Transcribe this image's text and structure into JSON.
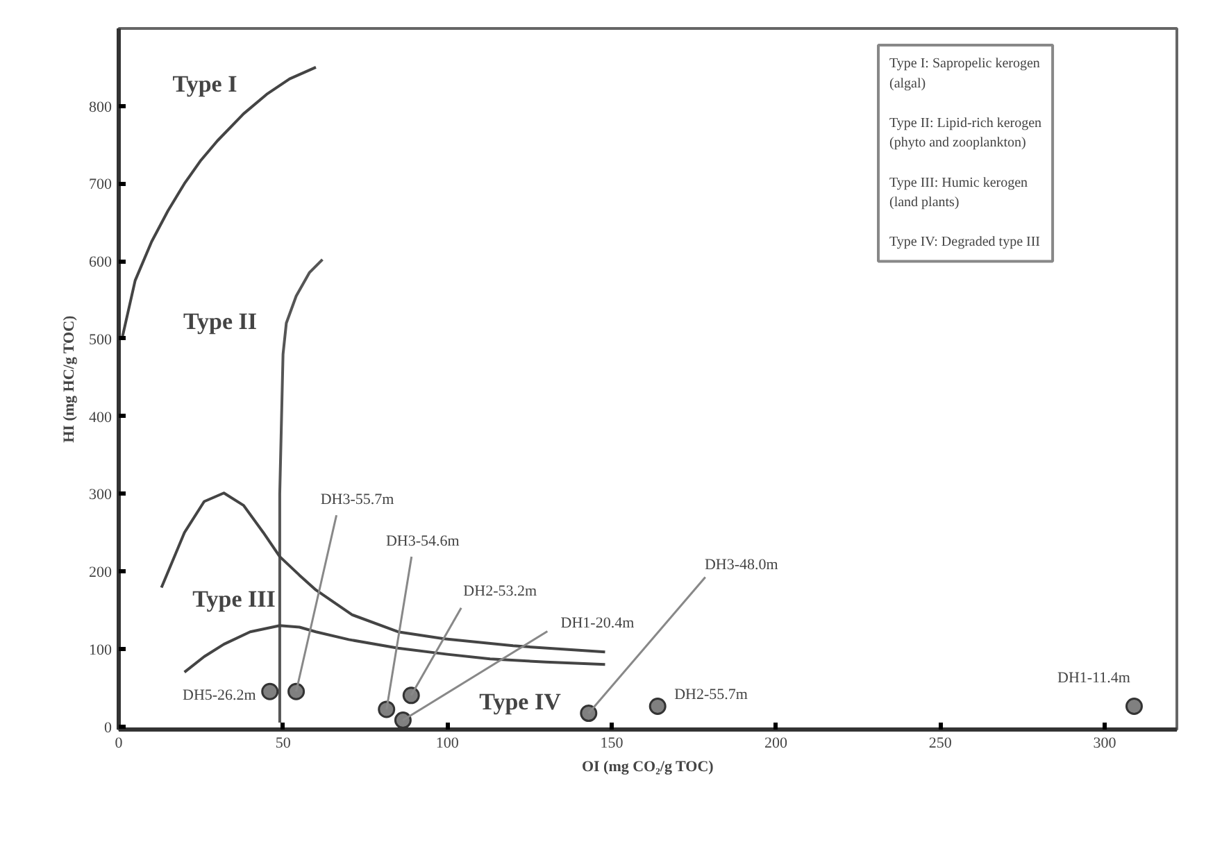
{
  "chart_data": {
    "type": "scatter",
    "xlabel": "OI (mg CO₂/g TOC)",
    "ylabel": "HI (mg HC/g TOC)",
    "xlim": [
      0,
      322
    ],
    "ylim": [
      -4,
      900
    ],
    "xticks": [
      0,
      50,
      100,
      150,
      200,
      250,
      300
    ],
    "yticks": [
      0,
      100,
      200,
      300,
      400,
      500,
      600,
      700,
      800
    ],
    "grid": false,
    "series": [
      {
        "marker": "circle",
        "color": "#808080",
        "x": [
          46,
          54,
          81.5,
          89,
          86.5,
          143,
          164,
          309
        ],
        "values": [
          45,
          45,
          22,
          40,
          8,
          17,
          26,
          26
        ]
      },
      {
        "type": "line",
        "color": "#444444",
        "x": [
          1,
          5,
          10,
          15,
          20,
          25,
          30,
          38,
          45,
          52,
          60
        ],
        "values": [
          500,
          575,
          625,
          665,
          700,
          730,
          755,
          790,
          815,
          835,
          850
        ]
      },
      {
        "type": "line",
        "color": "#555555",
        "x": [
          49,
          49,
          50,
          51,
          54,
          58,
          62
        ],
        "values": [
          5,
          300,
          480,
          520,
          555,
          585,
          602
        ]
      },
      {
        "type": "line",
        "color": "#444444",
        "x": [
          13,
          20,
          26,
          32,
          38,
          44,
          49,
          55,
          60,
          71,
          85,
          99,
          120,
          148
        ],
        "values": [
          179,
          250,
          290,
          301,
          285,
          250,
          219,
          195,
          176,
          144,
          122,
          113,
          104,
          96
        ]
      },
      {
        "type": "line",
        "color": "#444444",
        "x": [
          20,
          26,
          32,
          40,
          49,
          55,
          60,
          70,
          85,
          100,
          113,
          130,
          148
        ],
        "values": [
          70,
          90,
          106,
          122,
          130,
          128,
          122,
          112,
          101,
          93,
          87,
          83,
          80
        ]
      }
    ],
    "annotations": [
      {
        "text": "DH5-26.2m",
        "x": 46,
        "y": 45
      },
      {
        "text": "DH3-55.7m",
        "x": 54,
        "y": 45
      },
      {
        "text": "DH3-54.6m",
        "x": 81.5,
        "y": 22
      },
      {
        "text": "DH2-53.2m",
        "x": 89,
        "y": 40
      },
      {
        "text": "DH1-20.4m",
        "x": 86.5,
        "y": 8
      },
      {
        "text": "DH3-48.0m",
        "x": 143,
        "y": 17
      },
      {
        "text": "DH2-55.7m",
        "x": 164,
        "y": 26
      },
      {
        "text": "DH1-11.4m",
        "x": 309,
        "y": 26
      },
      "Type I",
      "Type II",
      "Type III",
      "Type IV",
      "Type I: Sapropelic kerogen\n(algal)",
      "Type II: Lipid-rich kerogen\n(phyto and zooplankton)",
      "Type III: Humic kerogen\n(land plants)",
      "Type IV: Degraded type III"
    ]
  }
}
